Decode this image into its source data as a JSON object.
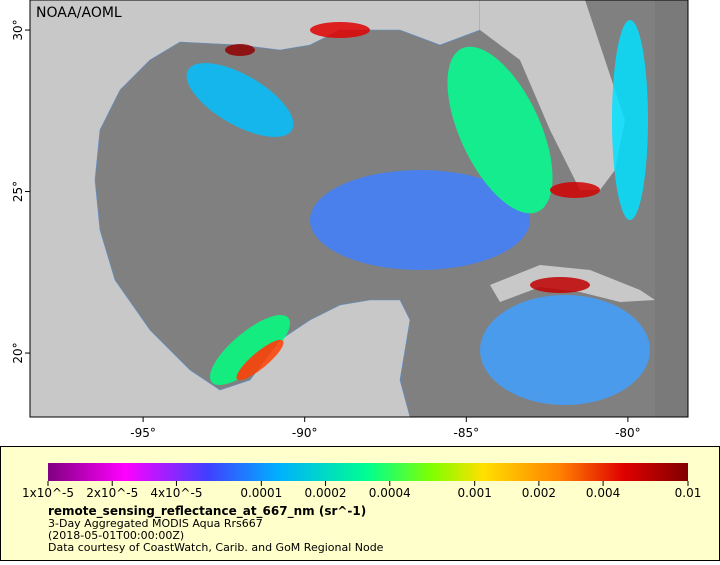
{
  "map": {
    "credit": "NOAA/AOML",
    "lonlim": [
      -98.5,
      -78.14
    ],
    "latlim": [
      18.02,
      30.93
    ],
    "lon_ticks": [
      {
        "value": -95,
        "label": "-95°"
      },
      {
        "value": -90,
        "label": "-90°"
      },
      {
        "value": -85,
        "label": "-85°"
      },
      {
        "value": -80,
        "label": "-80°"
      }
    ],
    "lat_ticks": [
      {
        "value": 20,
        "label": "20°"
      },
      {
        "value": 25,
        "label": "25°"
      },
      {
        "value": 30,
        "label": "30°"
      }
    ]
  },
  "legend": {
    "scale": "log",
    "lim": [
      1e-05,
      0.01
    ],
    "ticks": [
      {
        "value": 1e-05,
        "label": "1x10^-5"
      },
      {
        "value": 2e-05,
        "label": "2x10^-5"
      },
      {
        "value": 4e-05,
        "label": "4x10^-5"
      },
      0.0001,
      0.0002,
      0.0004,
      0.001,
      0.002,
      0.004,
      0.01
    ],
    "variable": "remote_sensing_reflectance_at_667_nm (sr^-1)",
    "lines": [
      "3-Day Aggregated MODIS Aqua Rrs667",
      "(2018-05-01T00:00:00Z)",
      "Data courtesy of CoastWatch, Carib. and GoM Regional Node"
    ]
  }
}
